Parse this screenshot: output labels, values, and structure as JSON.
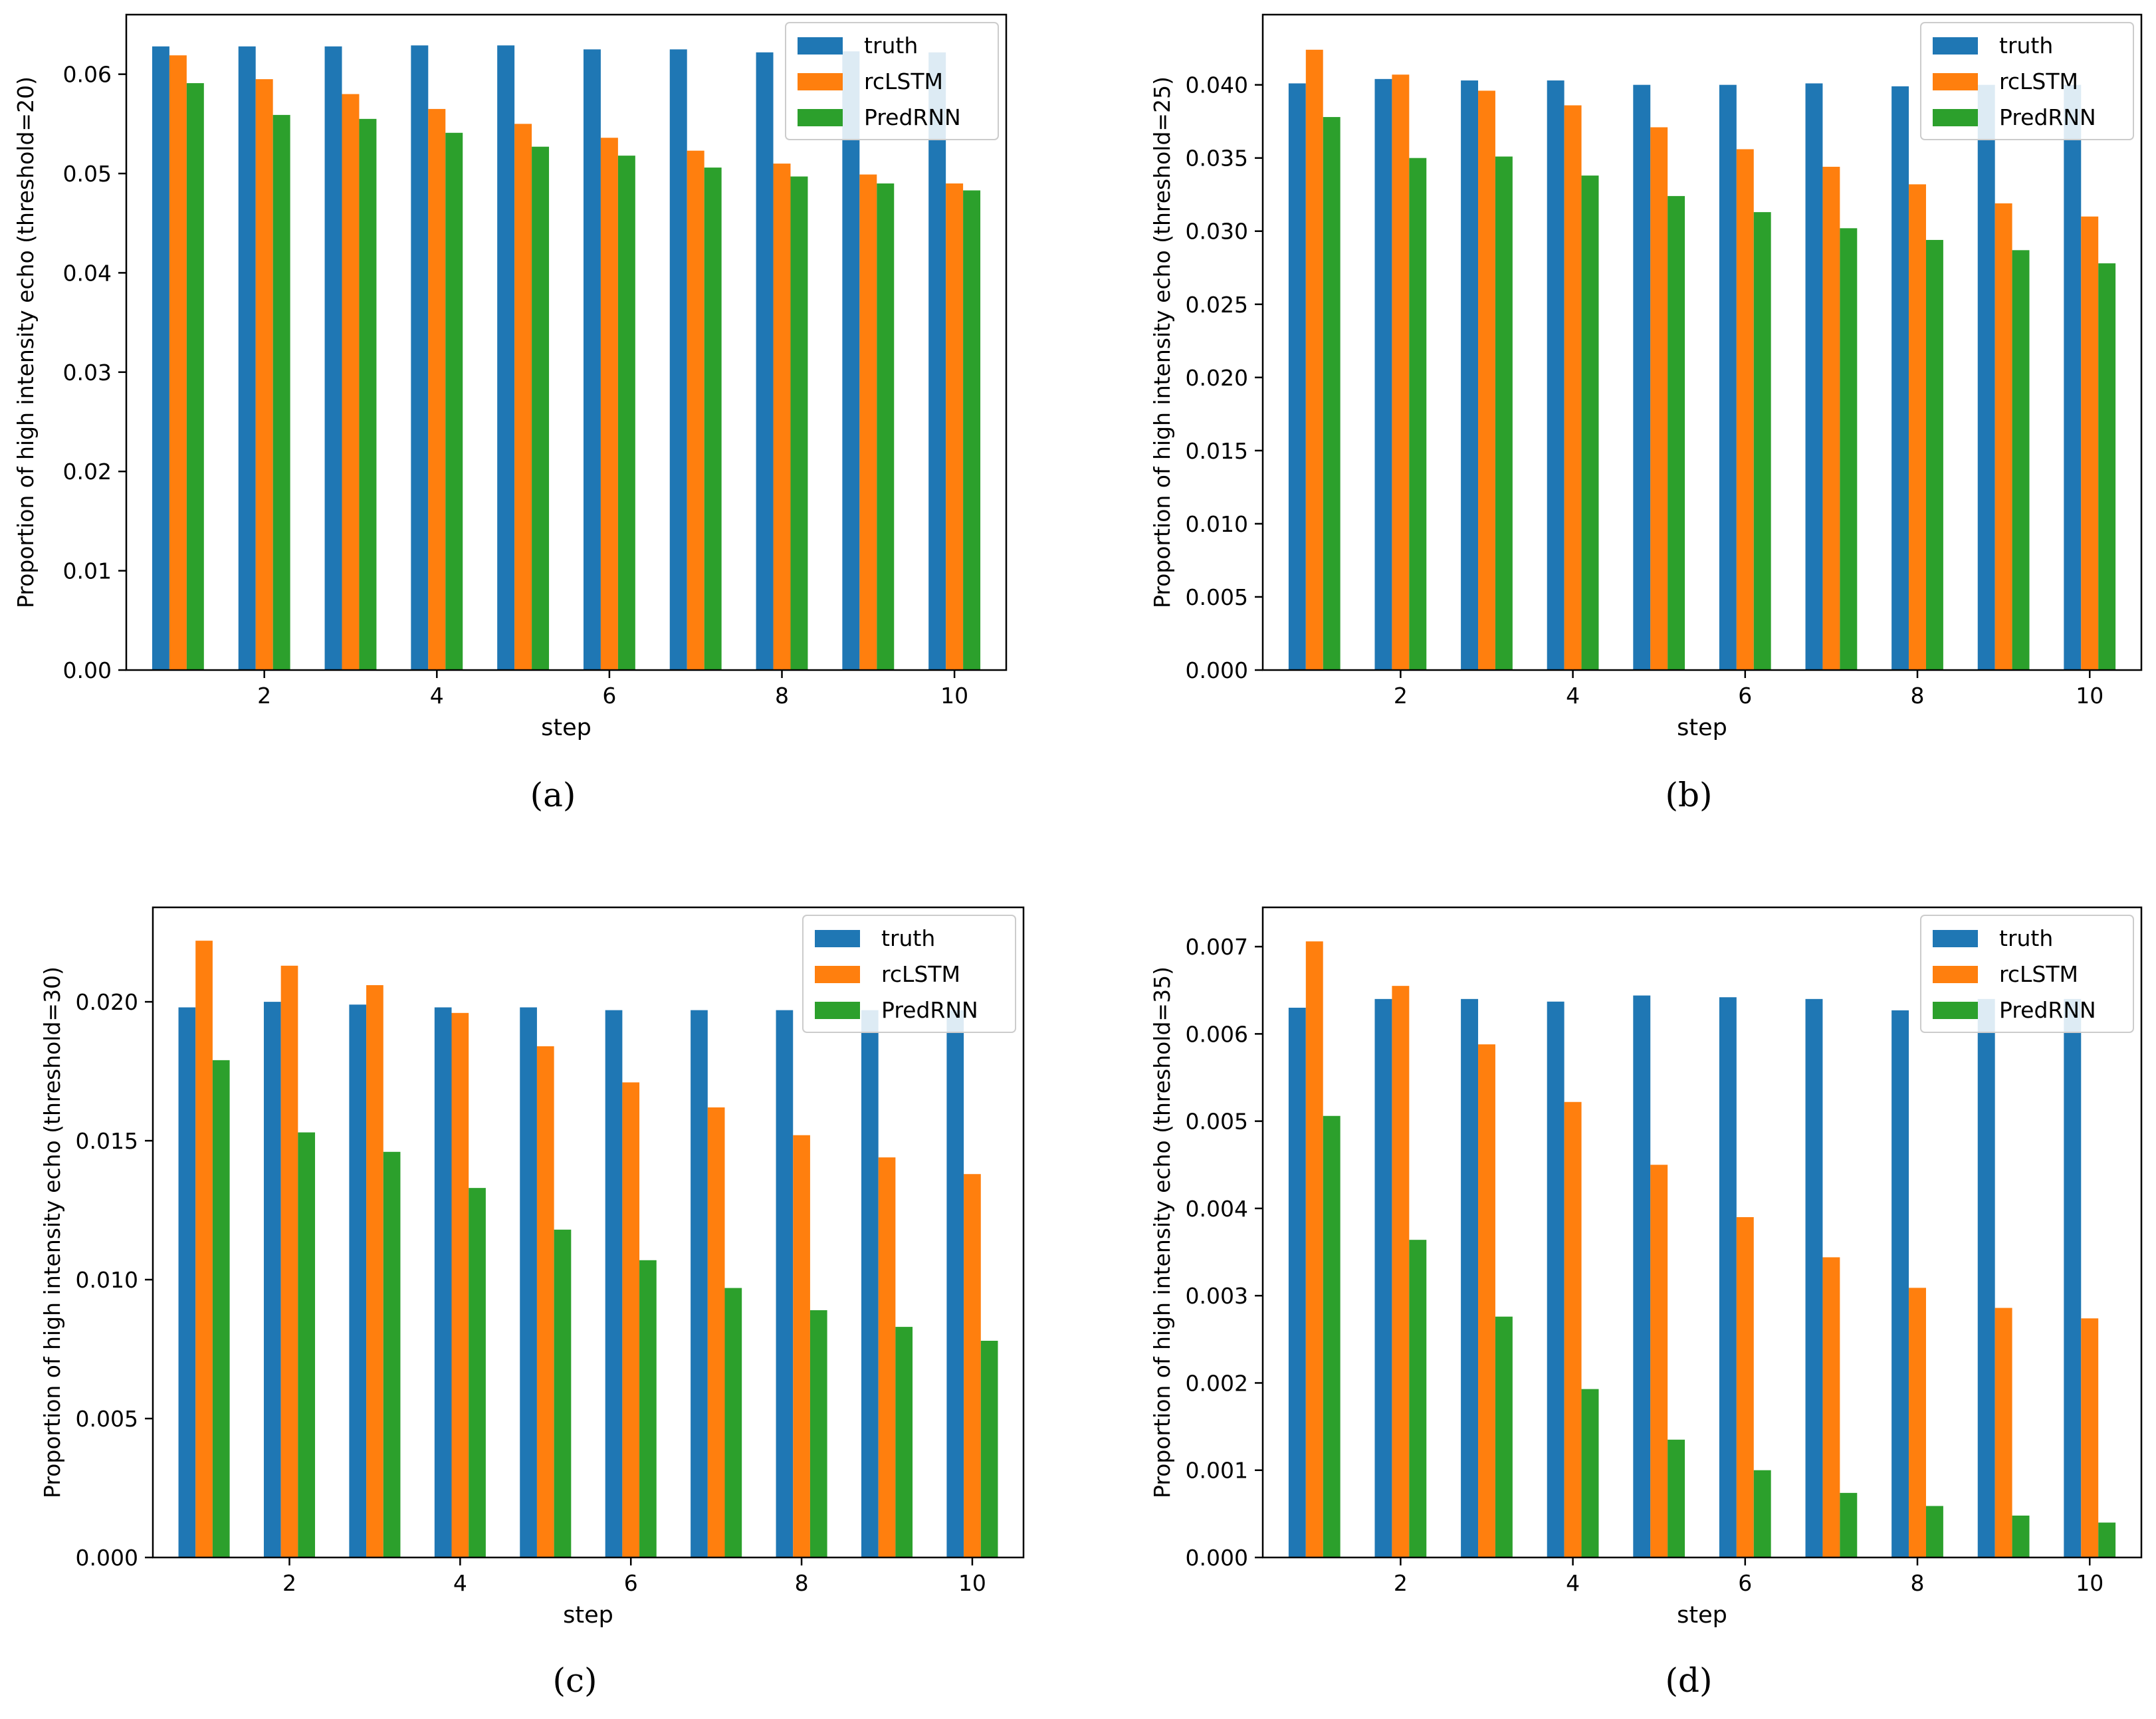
{
  "chart_data": [
    {
      "type": "bar",
      "panel": "a",
      "caption": "(a)",
      "title": "",
      "xlabel": "step",
      "ylabel": "Proportion of high intensity echo (threshold=20)",
      "ylim": [
        0,
        0.066
      ],
      "yticks": [
        "0.00",
        "0.01",
        "0.02",
        "0.03",
        "0.04",
        "0.05",
        "0.06"
      ],
      "xticks": [
        "2",
        "4",
        "6",
        "8",
        "10"
      ],
      "grid": false,
      "legend_position": "top-right",
      "categories": [
        1,
        2,
        3,
        4,
        5,
        6,
        7,
        8,
        9,
        10
      ],
      "series": [
        {
          "name": "truth",
          "color": "#1f77b4",
          "values": [
            0.0628,
            0.0628,
            0.0628,
            0.0629,
            0.0629,
            0.0625,
            0.0625,
            0.0622,
            0.0623,
            0.0622
          ]
        },
        {
          "name": "rcLSTM",
          "color": "#ff7f0e",
          "values": [
            0.0619,
            0.0595,
            0.058,
            0.0565,
            0.055,
            0.0536,
            0.0523,
            0.051,
            0.0499,
            0.049
          ]
        },
        {
          "name": "PredRNN",
          "color": "#2ca02c",
          "values": [
            0.0591,
            0.0559,
            0.0555,
            0.0541,
            0.0527,
            0.0518,
            0.0506,
            0.0497,
            0.049,
            0.0483
          ]
        }
      ]
    },
    {
      "type": "bar",
      "panel": "b",
      "caption": "(b)",
      "title": "",
      "xlabel": "step",
      "ylabel": "Proportion of high intensity echo (threshold=25)",
      "ylim": [
        0,
        0.0448
      ],
      "yticks": [
        "0.000",
        "0.005",
        "0.010",
        "0.015",
        "0.020",
        "0.025",
        "0.030",
        "0.035",
        "0.040"
      ],
      "xticks": [
        "2",
        "4",
        "6",
        "8",
        "10"
      ],
      "grid": false,
      "legend_position": "top-right",
      "categories": [
        1,
        2,
        3,
        4,
        5,
        6,
        7,
        8,
        9,
        10
      ],
      "series": [
        {
          "name": "truth",
          "color": "#1f77b4",
          "values": [
            0.0401,
            0.0404,
            0.0403,
            0.0403,
            0.04,
            0.04,
            0.0401,
            0.0399,
            0.04,
            0.04
          ]
        },
        {
          "name": "rcLSTM",
          "color": "#ff7f0e",
          "values": [
            0.0424,
            0.0407,
            0.0396,
            0.0386,
            0.0371,
            0.0356,
            0.0344,
            0.0332,
            0.0319,
            0.031
          ]
        },
        {
          "name": "PredRNN",
          "color": "#2ca02c",
          "values": [
            0.0378,
            0.035,
            0.0351,
            0.0338,
            0.0324,
            0.0313,
            0.0302,
            0.0294,
            0.0287,
            0.0278
          ]
        }
      ]
    },
    {
      "type": "bar",
      "panel": "c",
      "caption": "(c)",
      "title": "",
      "xlabel": "step",
      "ylabel": "Proportion of high intensity echo (threshold=30)",
      "ylim": [
        0,
        0.0234
      ],
      "yticks": [
        "0.000",
        "0.005",
        "0.010",
        "0.015",
        "0.020"
      ],
      "xticks": [
        "2",
        "4",
        "6",
        "8",
        "10"
      ],
      "grid": false,
      "legend_position": "top-right",
      "categories": [
        1,
        2,
        3,
        4,
        5,
        6,
        7,
        8,
        9,
        10
      ],
      "series": [
        {
          "name": "truth",
          "color": "#1f77b4",
          "values": [
            0.0198,
            0.02,
            0.0199,
            0.0198,
            0.0198,
            0.0197,
            0.0197,
            0.0197,
            0.0197,
            0.0197
          ]
        },
        {
          "name": "rcLSTM",
          "color": "#ff7f0e",
          "values": [
            0.0222,
            0.0213,
            0.0206,
            0.0196,
            0.0184,
            0.0171,
            0.0162,
            0.0152,
            0.0144,
            0.0138
          ]
        },
        {
          "name": "PredRNN",
          "color": "#2ca02c",
          "values": [
            0.0179,
            0.0153,
            0.0146,
            0.0133,
            0.0118,
            0.0107,
            0.0097,
            0.0089,
            0.0083,
            0.0078
          ]
        }
      ]
    },
    {
      "type": "bar",
      "panel": "d",
      "caption": "(d)",
      "title": "",
      "xlabel": "step",
      "ylabel": "Proportion of high intensity echo (threshold=35)",
      "ylim": [
        0,
        0.00745
      ],
      "yticks": [
        "0.000",
        "0.001",
        "0.002",
        "0.003",
        "0.004",
        "0.005",
        "0.006",
        "0.007"
      ],
      "xticks": [
        "2",
        "4",
        "6",
        "8",
        "10"
      ],
      "grid": false,
      "legend_position": "top-right",
      "categories": [
        1,
        2,
        3,
        4,
        5,
        6,
        7,
        8,
        9,
        10
      ],
      "series": [
        {
          "name": "truth",
          "color": "#1f77b4",
          "values": [
            0.0063,
            0.0064,
            0.0064,
            0.00637,
            0.00644,
            0.00642,
            0.0064,
            0.00627,
            0.0064,
            0.0064
          ]
        },
        {
          "name": "rcLSTM",
          "color": "#ff7f0e",
          "values": [
            0.00706,
            0.00655,
            0.00588,
            0.00522,
            0.0045,
            0.0039,
            0.00344,
            0.00309,
            0.00286,
            0.00274
          ]
        },
        {
          "name": "PredRNN",
          "color": "#2ca02c",
          "values": [
            0.00506,
            0.00364,
            0.00276,
            0.00193,
            0.00135,
            0.001,
            0.00074,
            0.00059,
            0.00048,
            0.0004
          ]
        }
      ]
    }
  ]
}
